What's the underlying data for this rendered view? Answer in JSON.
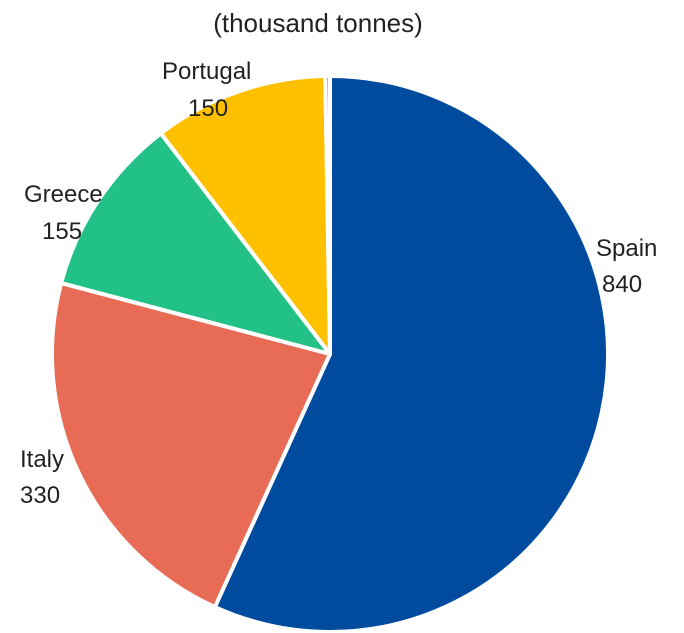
{
  "chart_data": {
    "type": "pie",
    "subtitle": "(thousand tonnes)",
    "slices": [
      {
        "label": "Spain",
        "value": 840,
        "value_text": "840",
        "color": "#004b9e"
      },
      {
        "label": "Italy",
        "value": 330,
        "value_text": "330",
        "color": "#e76b55"
      },
      {
        "label": "Greece",
        "value": 155,
        "value_text": "155",
        "color": "#22c187"
      },
      {
        "label": "Portugal",
        "value": 150,
        "value_text": "150",
        "color": "#ffc000"
      },
      {
        "label": "",
        "value": 4,
        "value_text": "",
        "color": "#e76b55"
      }
    ],
    "start_angle_deg": 0,
    "direction": "clockwise"
  }
}
